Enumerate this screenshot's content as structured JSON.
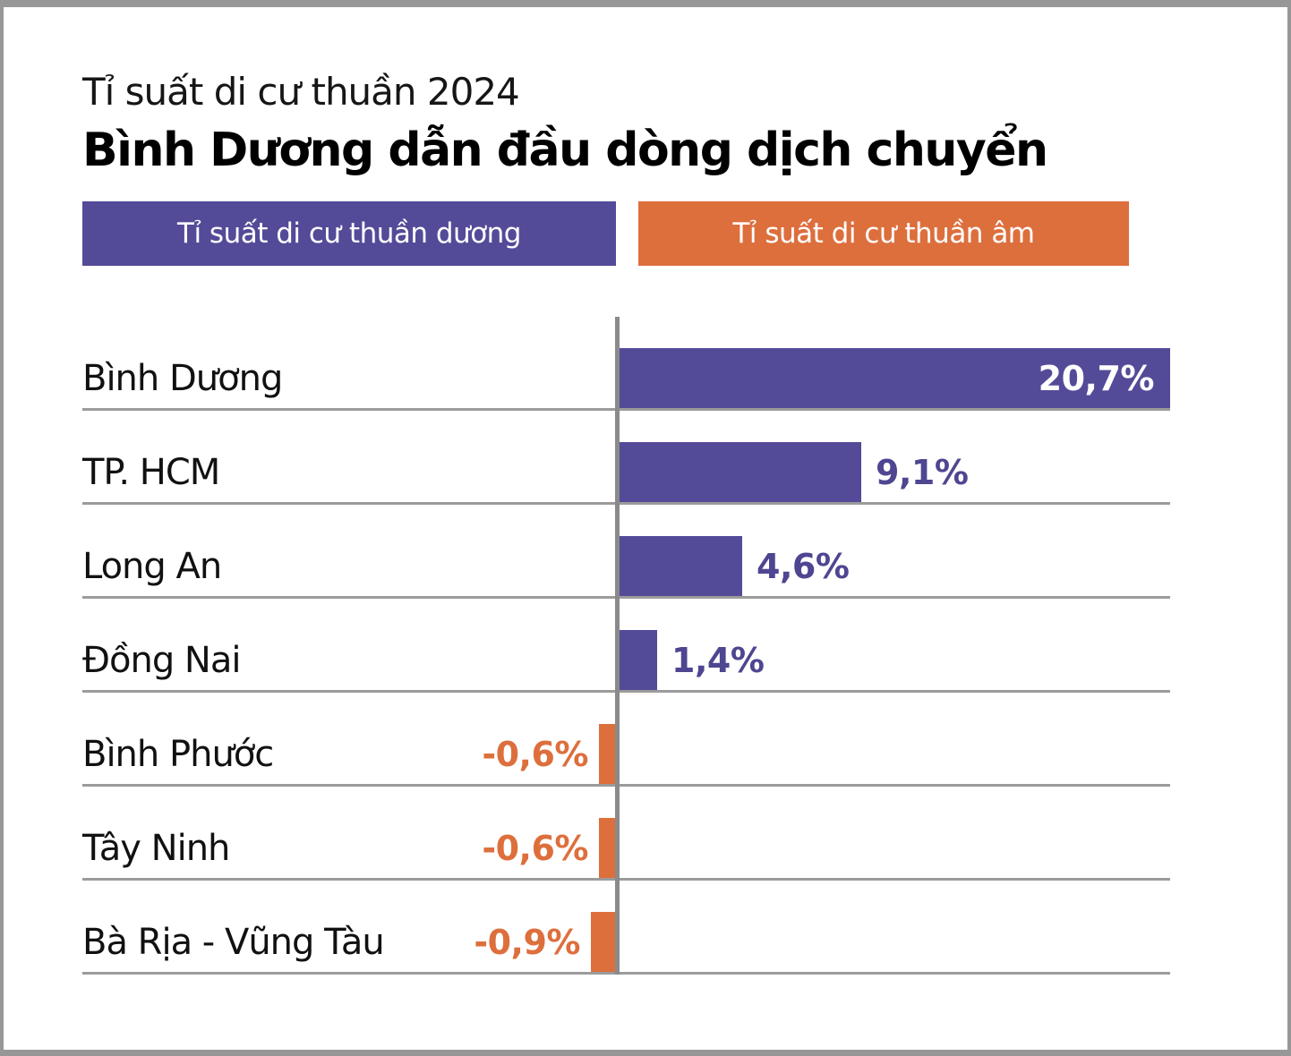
{
  "header": {
    "kicker": "Tỉ suất di cư thuần 2024",
    "title": "Bình Dương dẫn đầu dòng dịch chuyển"
  },
  "legend": [
    {
      "label": "Tỉ suất di cư thuần dương",
      "color": "#534B98"
    },
    {
      "label": "Tỉ suất di cư thuần âm",
      "color": "#DD6F3D"
    }
  ],
  "colors": {
    "positive_bar": "#534B98",
    "negative_bar": "#DD6F3D",
    "positive_value_text": "#4E4691",
    "negative_value_text": "#DD6F3D",
    "inside_value_text": "#ffffff",
    "axis_line": "#8a8a8a",
    "separator_line": "#9b9b9b",
    "frame_border": "#979797"
  },
  "chart_data": {
    "type": "bar",
    "orientation": "horizontal",
    "title": "Bình Dương dẫn đầu dòng dịch chuyển",
    "subtitle": "Tỉ suất di cư thuần 2024",
    "categories": [
      "Bình Dương",
      "TP. HCM",
      "Long An",
      "Đồng Nai",
      "Bình Phước",
      "Tây Ninh",
      "Bà Rịa - Vũng Tàu"
    ],
    "values": [
      20.7,
      9.1,
      4.6,
      1.4,
      -0.6,
      -0.6,
      -0.9
    ],
    "value_labels": [
      "20,7%",
      "9,1%",
      "4,6%",
      "1,4%",
      "-0,6%",
      "-0,6%",
      "-0,9%"
    ],
    "value_label_inside": [
      true,
      false,
      false,
      false,
      false,
      false,
      false
    ],
    "xlim": [
      -2,
      20.7
    ],
    "zero_baseline": true,
    "grid": "row-separators",
    "legend_position": "top",
    "series": [
      {
        "name": "Tỉ suất di cư thuần dương",
        "color": "#534B98",
        "applies_to": "values >= 0"
      },
      {
        "name": "Tỉ suất di cư thuần âm",
        "color": "#DD6F3D",
        "applies_to": "values < 0"
      }
    ]
  }
}
